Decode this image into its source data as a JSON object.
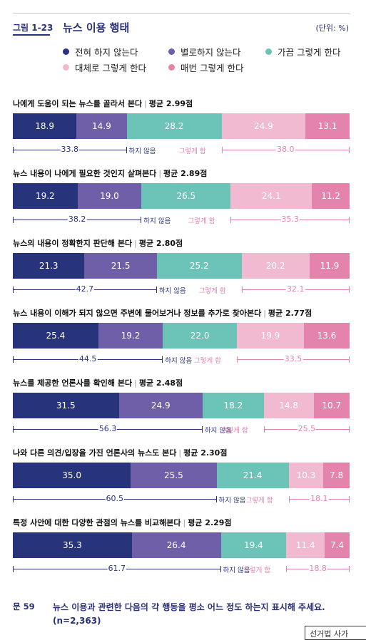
{
  "header": {
    "figure_number": "그림 1-23",
    "title": "뉴스 이용 행태",
    "unit": "(단위: %)"
  },
  "legend": [
    {
      "label": "전혀 하지 않는다",
      "color": "#27337a"
    },
    {
      "label": "별로하지 않는다",
      "color": "#6e5fa8"
    },
    {
      "label": "가끔 그렇게 한다",
      "color": "#6cc3b8"
    },
    {
      "label": "대체로 그렇게 한다",
      "color": "#f2bad0"
    },
    {
      "label": "매번 그렇게 한다",
      "color": "#e484ac"
    }
  ],
  "chart_data": {
    "type": "bar",
    "orientation": "horizontal-stacked-100",
    "series_names": [
      "전혀 하지 않는다",
      "별로하지 않는다",
      "가끔 그렇게 한다",
      "대체로 그렇게 한다",
      "매번 그렇게 한다"
    ],
    "colors": [
      "#27337a",
      "#6e5fa8",
      "#6cc3b8",
      "#f2bad0",
      "#e484ac"
    ],
    "not_label": "하지 않음",
    "do_label": "그렇게 함",
    "avg_prefix": "평균",
    "avg_suffix": "점",
    "items": [
      {
        "label": "나에게 도움이 되는 뉴스를 골라서 본다",
        "average": "2.99",
        "values": [
          18.9,
          14.9,
          28.2,
          24.9,
          13.1
        ],
        "not_total": "33.8",
        "do_total": "38.0"
      },
      {
        "label": "뉴스 내용이 나에게 필요한 것인지 살펴본다",
        "average": "2.89",
        "values": [
          19.2,
          19.0,
          26.5,
          24.1,
          11.2
        ],
        "not_total": "38.2",
        "do_total": "35.3"
      },
      {
        "label": "뉴스의 내용이 정확한지 판단해 본다",
        "average": "2.80",
        "values": [
          21.3,
          21.5,
          25.2,
          20.2,
          11.9
        ],
        "not_total": "42.7",
        "do_total": "32.1"
      },
      {
        "label": "뉴스 내용이 이해가 되지 않으면 주변에 물어보거나 정보를 추가로 찾아본다",
        "average": "2.77",
        "values": [
          25.4,
          19.2,
          22.0,
          19.9,
          13.6
        ],
        "not_total": "44.5",
        "do_total": "33.5"
      },
      {
        "label": "뉴스를 제공한 언론사를 확인해 본다",
        "average": "2.48",
        "values": [
          31.5,
          24.9,
          18.2,
          14.8,
          10.7
        ],
        "not_total": "56.3",
        "do_total": "25.5"
      },
      {
        "label": "나와 다른 의견/입장을 가진 언론사의 뉴스도 본다",
        "average": "2.30",
        "values": [
          35.0,
          25.5,
          21.4,
          10.3,
          7.8
        ],
        "not_total": "60.5",
        "do_total": "18.1"
      },
      {
        "label": "특정 사안에 대한 다양한 관점의 뉴스를 비교해본다",
        "average": "2.29",
        "values": [
          35.3,
          26.4,
          19.4,
          11.4,
          7.4
        ],
        "not_total": "61.7",
        "do_total": "18.8"
      }
    ]
  },
  "footer": {
    "question_number": "문 59",
    "question_text": "뉴스 이용과 관련한 다음의 각 행동을 평소 어느 정도 하는지 표시해 주세요. (n=2,363)"
  },
  "corner_label": "선거법 사가"
}
